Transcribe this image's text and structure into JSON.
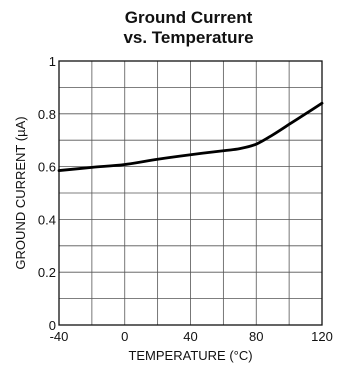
{
  "chart_data": {
    "type": "line",
    "title_lines": [
      "Ground Current",
      "vs. Temperature"
    ],
    "xlabel": "TEMPERATURE (°C)",
    "ylabel": "GROUND CURRENT (µA)",
    "xlim": [
      -40,
      120
    ],
    "ylim": [
      0,
      1
    ],
    "x_ticks": [
      -40,
      0,
      40,
      80,
      120
    ],
    "x_tick_labels": [
      "-40",
      "0",
      "40",
      "80",
      "120"
    ],
    "y_ticks": [
      0,
      0.2,
      0.4,
      0.6,
      0.8,
      1
    ],
    "y_tick_labels": [
      "0",
      "0.2",
      "0.4",
      "0.6",
      "0.8",
      "1"
    ],
    "x_minor_step": 20,
    "y_minor_step": 0.1,
    "grid": true,
    "series": [
      {
        "x": [
          -40,
          -20,
          0,
          20,
          40,
          60,
          70,
          80,
          90,
          100,
          110,
          120
        ],
        "y": [
          0.585,
          0.597,
          0.608,
          0.628,
          0.645,
          0.66,
          0.668,
          0.685,
          0.72,
          0.76,
          0.8,
          0.84
        ],
        "color": "#000000"
      }
    ]
  }
}
